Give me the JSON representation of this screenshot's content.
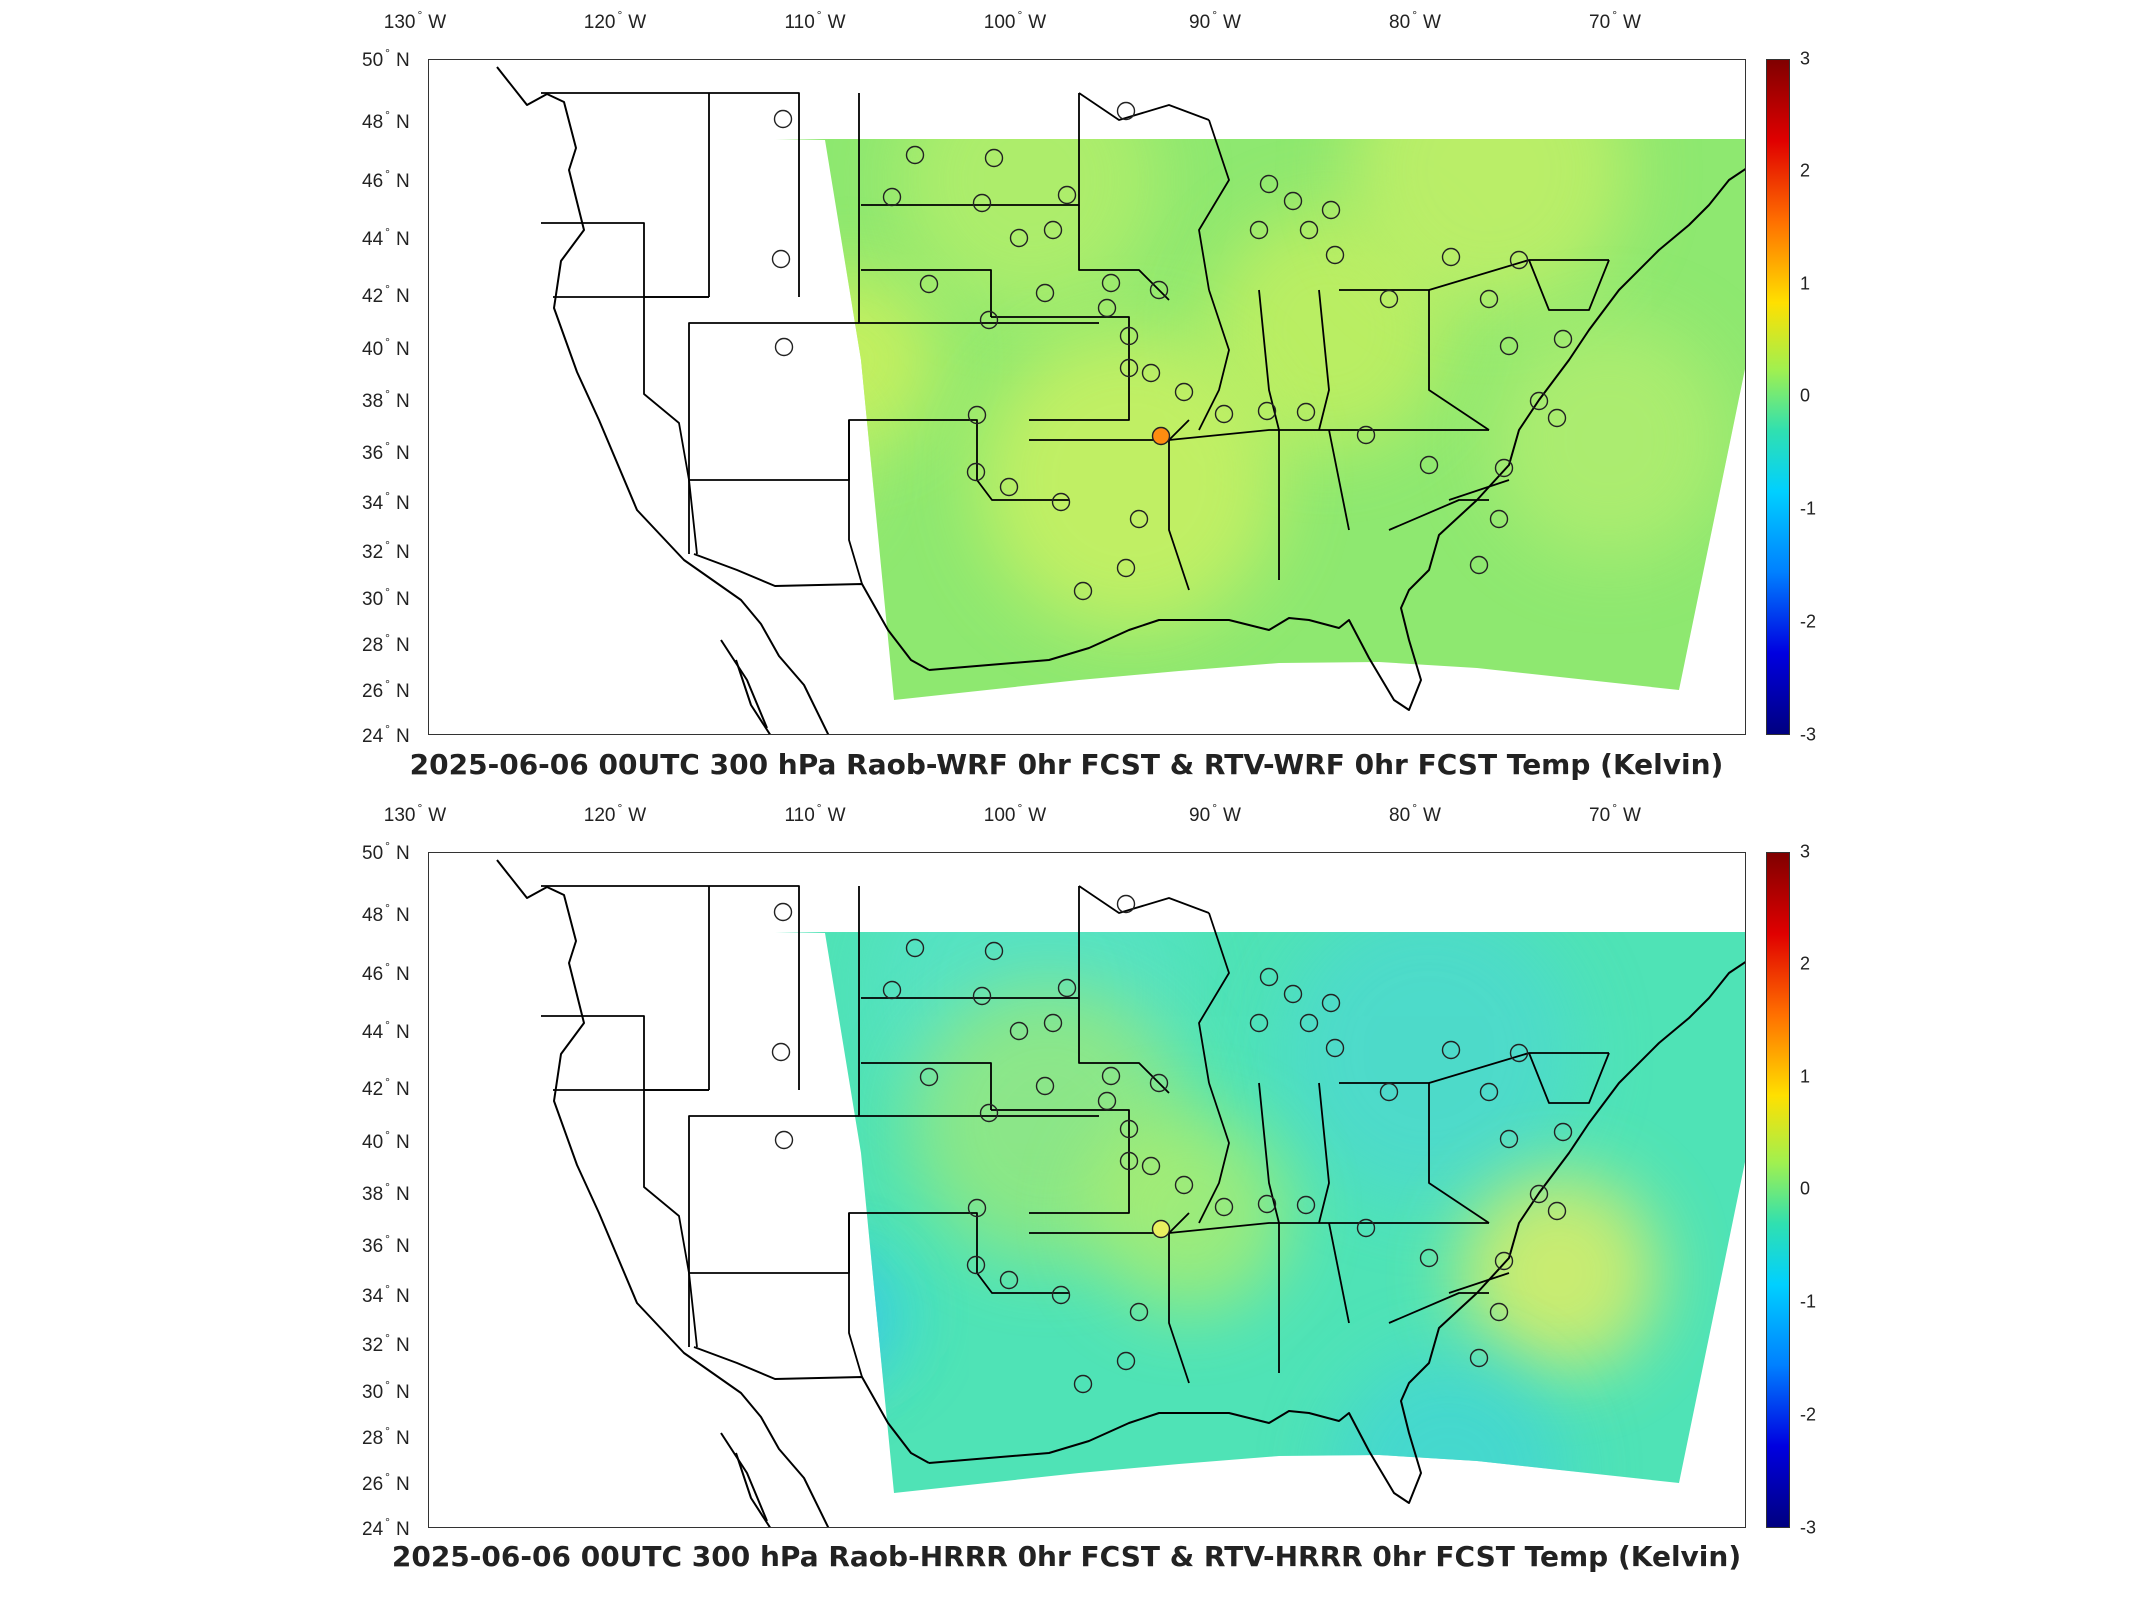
{
  "lon_labels": [
    {
      "deg": "130",
      "dir": "W"
    },
    {
      "deg": "120",
      "dir": "W"
    },
    {
      "deg": "110",
      "dir": "W"
    },
    {
      "deg": "100",
      "dir": "W"
    },
    {
      "deg": "90",
      "dir": "W"
    },
    {
      "deg": "80",
      "dir": "W"
    },
    {
      "deg": "70",
      "dir": "W"
    }
  ],
  "lat_labels": [
    {
      "deg": "50",
      "dir": "N"
    },
    {
      "deg": "48",
      "dir": "N"
    },
    {
      "deg": "46",
      "dir": "N"
    },
    {
      "deg": "44",
      "dir": "N"
    },
    {
      "deg": "42",
      "dir": "N"
    },
    {
      "deg": "40",
      "dir": "N"
    },
    {
      "deg": "38",
      "dir": "N"
    },
    {
      "deg": "36",
      "dir": "N"
    },
    {
      "deg": "34",
      "dir": "N"
    },
    {
      "deg": "32",
      "dir": "N"
    },
    {
      "deg": "30",
      "dir": "N"
    },
    {
      "deg": "28",
      "dir": "N"
    },
    {
      "deg": "26",
      "dir": "N"
    },
    {
      "deg": "24",
      "dir": "N"
    }
  ],
  "colorbar": {
    "ticks": [
      "3",
      "2",
      "1",
      "0",
      "-1",
      "-2",
      "-3"
    ],
    "range": [
      -3,
      3
    ],
    "colormap": "jet"
  },
  "panels": [
    {
      "title": "2025-06-06 00UTC 300 hPa Raob-WRF 0hr FCST & RTV-WRF 0hr FCST Temp (Kelvin)",
      "field_color": "#8ee870",
      "highlight_station": {
        "color": "#ff8c10"
      },
      "station_fill": "none"
    },
    {
      "title": "2025-06-06 00UTC 300 hPa Raob-HRRR 0hr FCST & RTV-HRRR 0hr FCST Temp (Kelvin)",
      "field_color": "#4fe3b6",
      "highlight_station": {
        "color": "#e8f060"
      },
      "station_fill": "none"
    }
  ]
}
